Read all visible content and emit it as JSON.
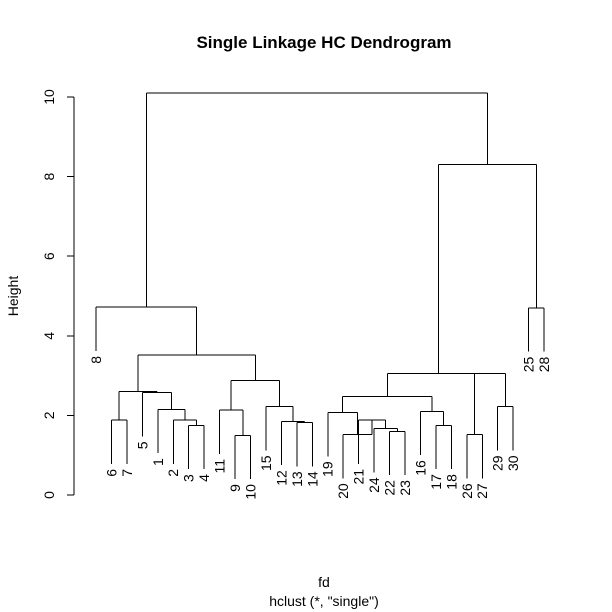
{
  "chart_data": {
    "type": "dendrogram",
    "title": "Single Linkage HC Dendrogram",
    "xlabel": "fd",
    "sub": "hclust (*, \"single\")",
    "ylabel": "Height",
    "ylim": [
      0,
      10
    ],
    "yticks": [
      0,
      2,
      4,
      6,
      8,
      10
    ],
    "leaves": [
      "8",
      "6",
      "7",
      "5",
      "1",
      "2",
      "3",
      "4",
      "11",
      "9",
      "10",
      "15",
      "12",
      "13",
      "14",
      "19",
      "20",
      "21",
      "24",
      "22",
      "23",
      "16",
      "17",
      "18",
      "26",
      "27",
      "29",
      "30",
      "25",
      "28"
    ],
    "merges": [
      {
        "a": "6",
        "b": "7",
        "h": 1.88
      },
      {
        "a": "22",
        "b": "23",
        "h": 1.6
      },
      {
        "a": "24",
        "b": "c2",
        "h": 1.67
      },
      {
        "a": "21",
        "b": "c3",
        "h": 1.88
      },
      {
        "a": "20",
        "b": "c4",
        "h": 1.52
      },
      {
        "a": "3",
        "b": "4",
        "h": 1.75
      },
      {
        "a": "2",
        "b": "c6",
        "h": 1.88
      },
      {
        "a": "1",
        "b": "c7",
        "h": 2.15
      },
      {
        "a": "5",
        "b": "c8",
        "h": 2.57
      },
      {
        "a": "c1",
        "b": "c9",
        "h": 2.6
      },
      {
        "a": "9",
        "b": "10",
        "h": 1.5
      },
      {
        "a": "11",
        "b": "c11",
        "h": 2.13
      },
      {
        "a": "13",
        "b": "14",
        "h": 1.82
      },
      {
        "a": "12",
        "b": "c13",
        "h": 1.85
      },
      {
        "a": "15",
        "b": "c14",
        "h": 2.22
      },
      {
        "a": "c12",
        "b": "c15",
        "h": 2.88
      },
      {
        "a": "c10",
        "b": "c16",
        "h": 3.52
      },
      {
        "a": "8",
        "b": "c17",
        "h": 4.72
      },
      {
        "a": "19",
        "b": "c5",
        "h": 2.07
      },
      {
        "a": "17",
        "b": "18",
        "h": 1.75
      },
      {
        "a": "16",
        "b": "c20",
        "h": 2.1
      },
      {
        "a": "c19",
        "b": "c21",
        "h": 2.48
      },
      {
        "a": "26",
        "b": "27",
        "h": 1.52
      },
      {
        "a": "29",
        "b": "30",
        "h": 2.22
      },
      {
        "a": "c23",
        "b": "c24",
        "h": 3.05
      },
      {
        "a": "c22",
        "b": "c25",
        "h": 3.05
      },
      {
        "a": "25",
        "b": "28",
        "h": 4.7
      },
      {
        "a": "c26",
        "b": "c27",
        "h": 8.3
      },
      {
        "a": "c18",
        "b": "c28",
        "h": 10.1
      }
    ]
  }
}
